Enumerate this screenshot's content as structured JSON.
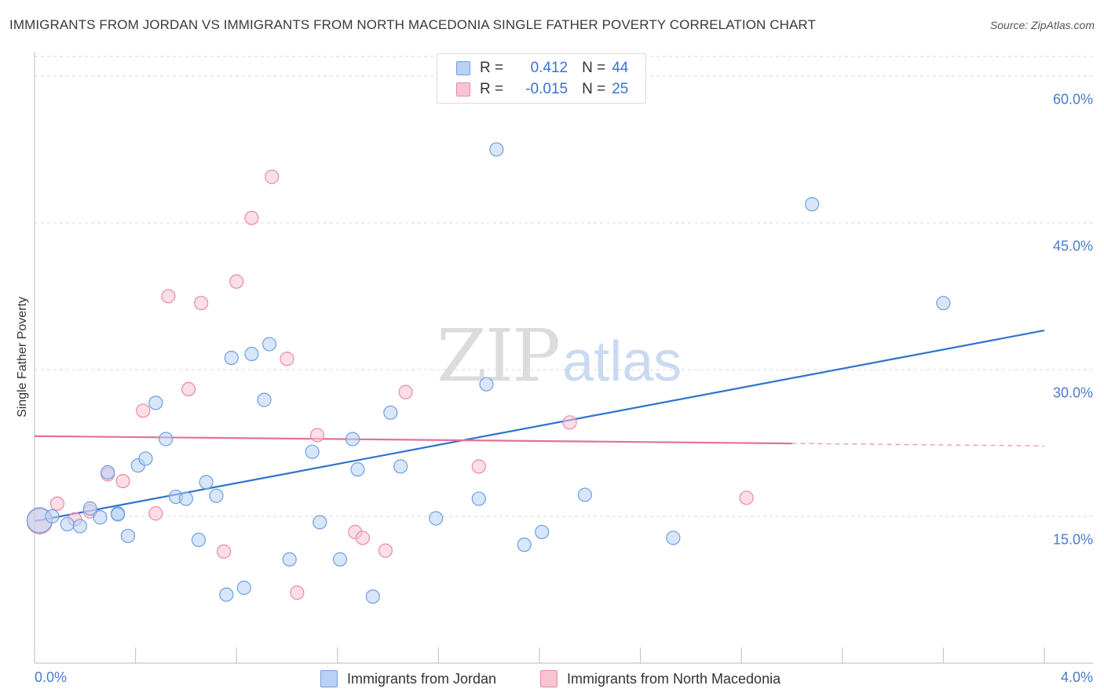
{
  "title": "IMMIGRANTS FROM JORDAN VS IMMIGRANTS FROM NORTH MACEDONIA SINGLE FATHER POVERTY CORRELATION CHART",
  "source": "Source: ZipAtlas.com",
  "watermark": {
    "zip": "ZIP",
    "atlas": "atlas"
  },
  "legend": {
    "rows": [
      {
        "r_label": "R =",
        "r_value": "0.412",
        "n_label": "N =",
        "n_value": "44"
      },
      {
        "r_label": "R =",
        "r_value": "-0.015",
        "n_label": "N =",
        "n_value": "25"
      }
    ]
  },
  "colors": {
    "series1_fill": "#b8d1f4",
    "series1_stroke": "#6f9fe0",
    "series1_line": "#2f72d1",
    "series2_fill": "#f9c3d3",
    "series2_stroke": "#e88aa8",
    "series2_line": "#e4719a",
    "tick_text": "#4a7cc9",
    "grid": "#d9d9d9"
  },
  "chart_data": {
    "type": "scatter",
    "title": "IMMIGRANTS FROM JORDAN VS IMMIGRANTS FROM NORTH MACEDONIA SINGLE FATHER POVERTY CORRELATION CHART",
    "xlabel": "",
    "ylabel": "Single Father Poverty",
    "xlim": [
      0.0,
      4.0
    ],
    "ylim": [
      0.0,
      62.0
    ],
    "x_tick_labels": [
      "0.0%",
      "4.0%"
    ],
    "y_ticks": [
      15.0,
      30.0,
      45.0,
      60.0
    ],
    "y_tick_labels": [
      "15.0%",
      "30.0%",
      "45.0%",
      "60.0%"
    ],
    "grid": true,
    "legend_position": "top-center",
    "series": [
      {
        "name": "Immigrants from Jordan",
        "r": 0.412,
        "n": 44,
        "trend": {
          "x": [
            0.0,
            4.0
          ],
          "y": [
            14.5,
            34.0
          ],
          "dashed_from": null
        },
        "points": [
          {
            "x": 0.02,
            "y": 14.6,
            "big": true
          },
          {
            "x": 0.07,
            "y": 15.0
          },
          {
            "x": 0.13,
            "y": 14.2
          },
          {
            "x": 0.18,
            "y": 14.0
          },
          {
            "x": 0.22,
            "y": 15.8
          },
          {
            "x": 0.26,
            "y": 14.9
          },
          {
            "x": 0.29,
            "y": 19.5
          },
          {
            "x": 0.33,
            "y": 15.3
          },
          {
            "x": 0.37,
            "y": 13.0
          },
          {
            "x": 0.41,
            "y": 20.2
          },
          {
            "x": 0.44,
            "y": 20.9
          },
          {
            "x": 0.48,
            "y": 26.6
          },
          {
            "x": 0.52,
            "y": 22.9
          },
          {
            "x": 0.56,
            "y": 17.0
          },
          {
            "x": 0.6,
            "y": 16.8
          },
          {
            "x": 0.65,
            "y": 12.6
          },
          {
            "x": 0.68,
            "y": 18.5
          },
          {
            "x": 0.72,
            "y": 17.1
          },
          {
            "x": 0.76,
            "y": 7.0
          },
          {
            "x": 0.78,
            "y": 31.2
          },
          {
            "x": 0.83,
            "y": 7.7
          },
          {
            "x": 0.86,
            "y": 31.6
          },
          {
            "x": 0.91,
            "y": 26.9
          },
          {
            "x": 0.93,
            "y": 32.6
          },
          {
            "x": 1.01,
            "y": 10.6
          },
          {
            "x": 1.1,
            "y": 21.6
          },
          {
            "x": 1.13,
            "y": 14.4
          },
          {
            "x": 1.21,
            "y": 10.6
          },
          {
            "x": 1.26,
            "y": 22.9
          },
          {
            "x": 1.28,
            "y": 19.8
          },
          {
            "x": 1.34,
            "y": 6.8
          },
          {
            "x": 1.41,
            "y": 25.6
          },
          {
            "x": 1.45,
            "y": 20.1
          },
          {
            "x": 1.59,
            "y": 14.8
          },
          {
            "x": 1.76,
            "y": 16.8
          },
          {
            "x": 1.79,
            "y": 28.5
          },
          {
            "x": 1.83,
            "y": 52.5
          },
          {
            "x": 1.94,
            "y": 12.1
          },
          {
            "x": 2.01,
            "y": 13.4
          },
          {
            "x": 2.18,
            "y": 17.2
          },
          {
            "x": 2.53,
            "y": 12.8
          },
          {
            "x": 3.08,
            "y": 46.9
          },
          {
            "x": 3.6,
            "y": 36.8
          },
          {
            "x": 0.33,
            "y": 15.2
          }
        ]
      },
      {
        "name": "Immigrants from North Macedonia",
        "r": -0.015,
        "n": 25,
        "trend": {
          "x": [
            0.0,
            4.0
          ],
          "y": [
            23.2,
            22.2
          ],
          "dashed_from": 3.0
        },
        "points": [
          {
            "x": 0.02,
            "y": 14.5,
            "big": true
          },
          {
            "x": 0.09,
            "y": 16.3
          },
          {
            "x": 0.16,
            "y": 14.7
          },
          {
            "x": 0.22,
            "y": 15.5
          },
          {
            "x": 0.29,
            "y": 19.3
          },
          {
            "x": 0.35,
            "y": 18.6
          },
          {
            "x": 0.43,
            "y": 25.8
          },
          {
            "x": 0.48,
            "y": 15.3
          },
          {
            "x": 0.53,
            "y": 37.5
          },
          {
            "x": 0.61,
            "y": 28.0
          },
          {
            "x": 0.66,
            "y": 36.8
          },
          {
            "x": 0.75,
            "y": 11.4
          },
          {
            "x": 0.8,
            "y": 39.0
          },
          {
            "x": 0.86,
            "y": 45.5
          },
          {
            "x": 0.94,
            "y": 49.7
          },
          {
            "x": 1.0,
            "y": 31.1
          },
          {
            "x": 1.04,
            "y": 7.2
          },
          {
            "x": 1.12,
            "y": 23.3
          },
          {
            "x": 1.27,
            "y": 13.4
          },
          {
            "x": 1.3,
            "y": 12.8
          },
          {
            "x": 1.39,
            "y": 11.5
          },
          {
            "x": 1.47,
            "y": 27.7
          },
          {
            "x": 1.76,
            "y": 20.1
          },
          {
            "x": 2.12,
            "y": 24.6
          },
          {
            "x": 2.82,
            "y": 16.9
          }
        ]
      }
    ]
  }
}
